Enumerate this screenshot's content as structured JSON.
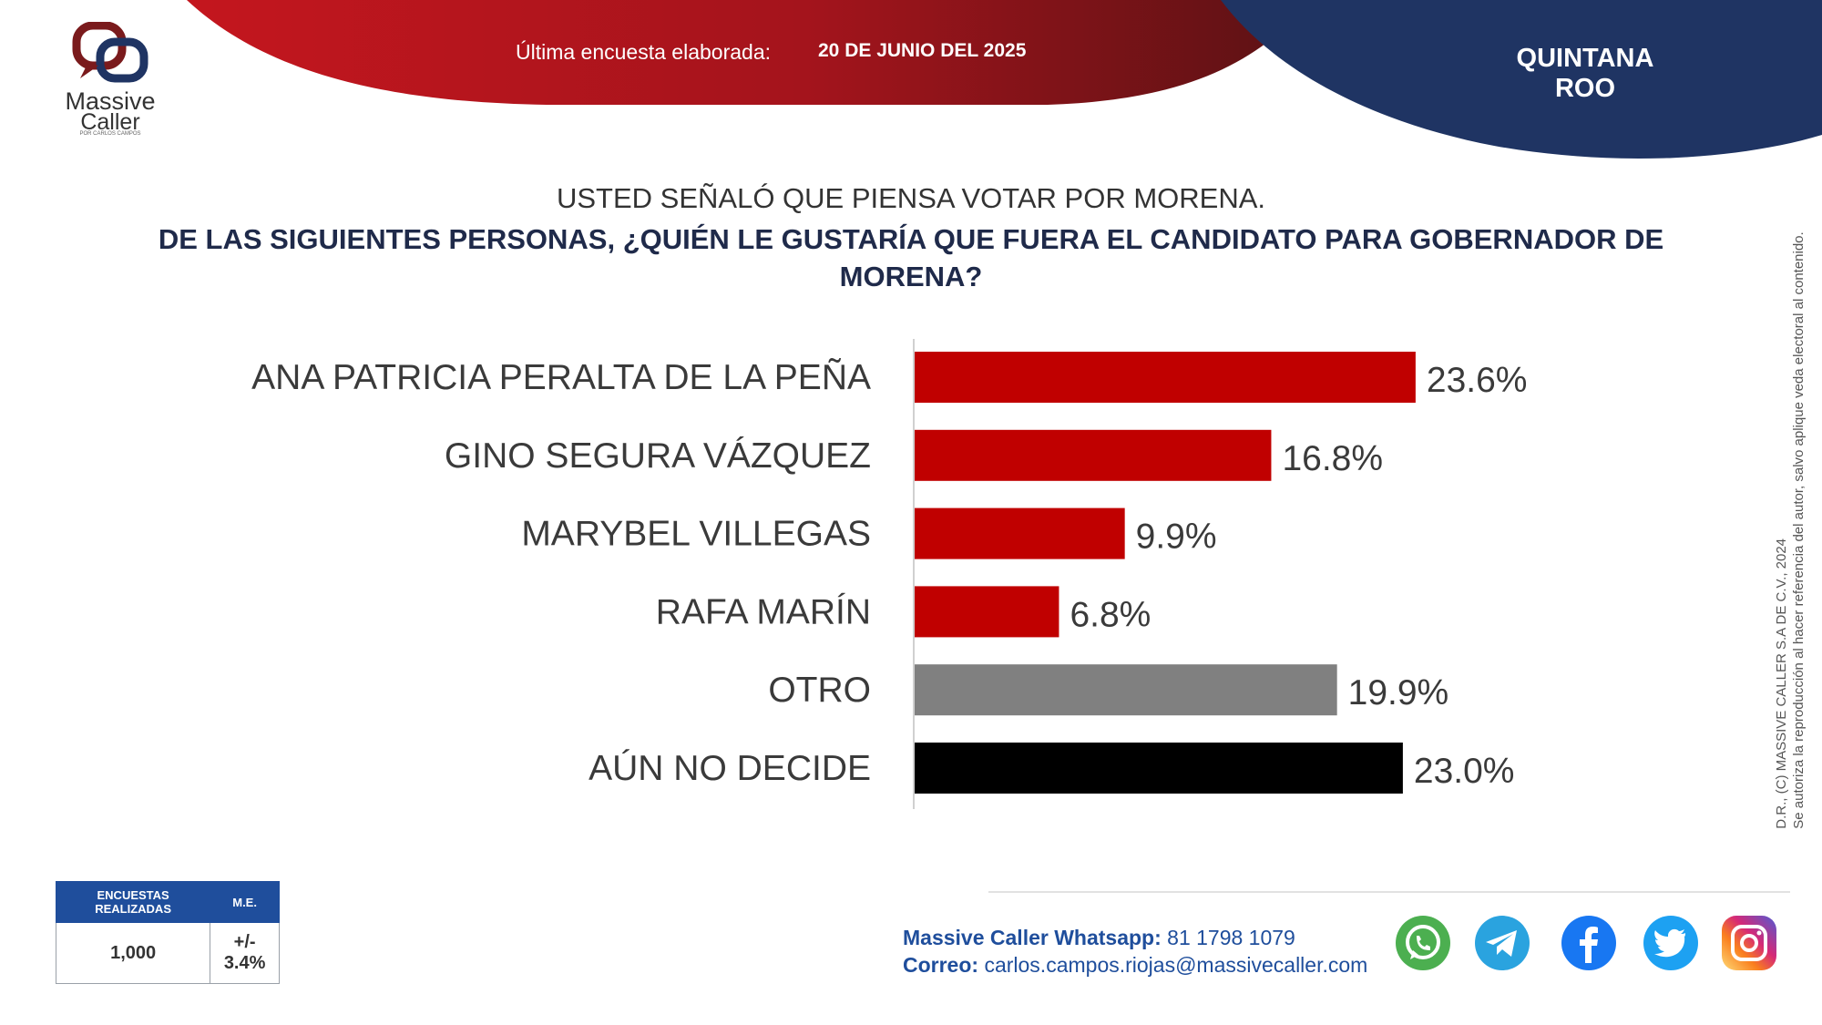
{
  "header": {
    "last_survey_label": "Última encuesta elaborada:",
    "last_survey_date": "20 DE JUNIO DEL 2025",
    "state": "QUINTANA ROO"
  },
  "logo": {
    "line1": "Massive",
    "line2": "Caller",
    "line3": "POR CARLOS CAMPOS"
  },
  "question": {
    "line1": "USTED SEÑALÓ QUE PIENSA VOTAR POR MORENA.",
    "line2": "DE LAS SIGUIENTES PERSONAS, ¿QUIÉN LE GUSTARÍA QUE FUERA EL CANDIDATO PARA GOBERNADOR DE MORENA?"
  },
  "chart_data": {
    "type": "bar",
    "orientation": "horizontal",
    "categories": [
      "ANA PATRICIA PERALTA DE LA PEÑA",
      "GINO SEGURA VÁZQUEZ",
      "MARYBEL VILLEGAS",
      "RAFA MARÍN",
      "OTRO",
      "AÚN NO DECIDE"
    ],
    "values": [
      23.6,
      16.8,
      9.9,
      6.8,
      19.9,
      23.0
    ],
    "value_labels": [
      "23.6%",
      "16.8%",
      "9.9%",
      "6.8%",
      "19.9%",
      "23.0%"
    ],
    "colors": [
      "#c00000",
      "#c00000",
      "#c00000",
      "#c00000",
      "#808080",
      "#000000"
    ],
    "xlim": [
      0,
      30
    ],
    "grid": false,
    "legend": "none"
  },
  "stats": {
    "col1_header": "ENCUESTAS REALIZADAS",
    "col2_header": "M.E.",
    "col1_value": "1,000",
    "col2_value": "+/- 3.4%"
  },
  "contact": {
    "whatsapp_label": "Massive Caller Whatsapp:",
    "whatsapp_value": "81 1798 1079",
    "email_label": "Correo:",
    "email_value": "carlos.campos.riojas@massivecaller.com"
  },
  "side_note": {
    "line1": "D.R., (C) MASSIVE CALLER S.A DE C.V., 2024",
    "line2": "Se autoriza la reproducción al hacer referencia del autor, salvo aplique veda electoral al contenido."
  },
  "social_icons": [
    "whatsapp-icon",
    "telegram-icon",
    "facebook-icon",
    "twitter-icon",
    "instagram-icon"
  ],
  "palette": {
    "header_red": "#b3141f",
    "header_navy": "#1f3463",
    "accent_blue": "#1f4e9c"
  }
}
